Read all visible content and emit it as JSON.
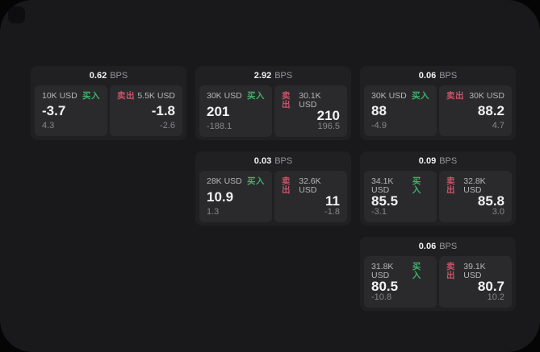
{
  "colors": {
    "window_bg": "#19191b",
    "icon_bg": "#0e0e10",
    "card_bg": "#202023",
    "panel_bg": "#2a2a2d",
    "buy_green": "#3db267",
    "sell_red": "#c85468",
    "text_primary": "#f2f2f2",
    "text_secondary": "#b6b6b8",
    "text_muted": "#87878a",
    "text_bps": "#96969a"
  },
  "labels": {
    "bps_suffix": "BPS",
    "buy": "买入",
    "sell": "卖出"
  },
  "cards": [
    {
      "row": 1,
      "col": 1,
      "bps": "0.62",
      "buy": {
        "amount": "10K USD",
        "price": "-3.7",
        "delta": "4.3"
      },
      "sell": {
        "amount": "5.5K USD",
        "price": "-1.8",
        "delta": "-2.6"
      }
    },
    {
      "row": 1,
      "col": 2,
      "bps": "2.92",
      "buy": {
        "amount": "30K USD",
        "price": "201",
        "delta": "-188.1"
      },
      "sell": {
        "amount": "30.1K USD",
        "price": "210",
        "delta": "196.5"
      }
    },
    {
      "row": 1,
      "col": 3,
      "bps": "0.06",
      "buy": {
        "amount": "30K USD",
        "price": "88",
        "delta": "-4.9"
      },
      "sell": {
        "amount": "30K USD",
        "price": "88.2",
        "delta": "4.7"
      }
    },
    {
      "row": 2,
      "col": 2,
      "bps": "0.03",
      "buy": {
        "amount": "28K USD",
        "price": "10.9",
        "delta": "1.3"
      },
      "sell": {
        "amount": "32.6K USD",
        "price": "11",
        "delta": "-1.8"
      }
    },
    {
      "row": 2,
      "col": 3,
      "bps": "0.09",
      "buy": {
        "amount": "34.1K USD",
        "price": "85.5",
        "delta": "-3.1"
      },
      "sell": {
        "amount": "32.8K USD",
        "price": "85.8",
        "delta": "3.0"
      }
    },
    {
      "row": 3,
      "col": 3,
      "bps": "0.06",
      "buy": {
        "amount": "31.8K USD",
        "price": "80.5",
        "delta": "-10.8"
      },
      "sell": {
        "amount": "39.1K USD",
        "price": "80.7",
        "delta": "10.2"
      }
    }
  ]
}
